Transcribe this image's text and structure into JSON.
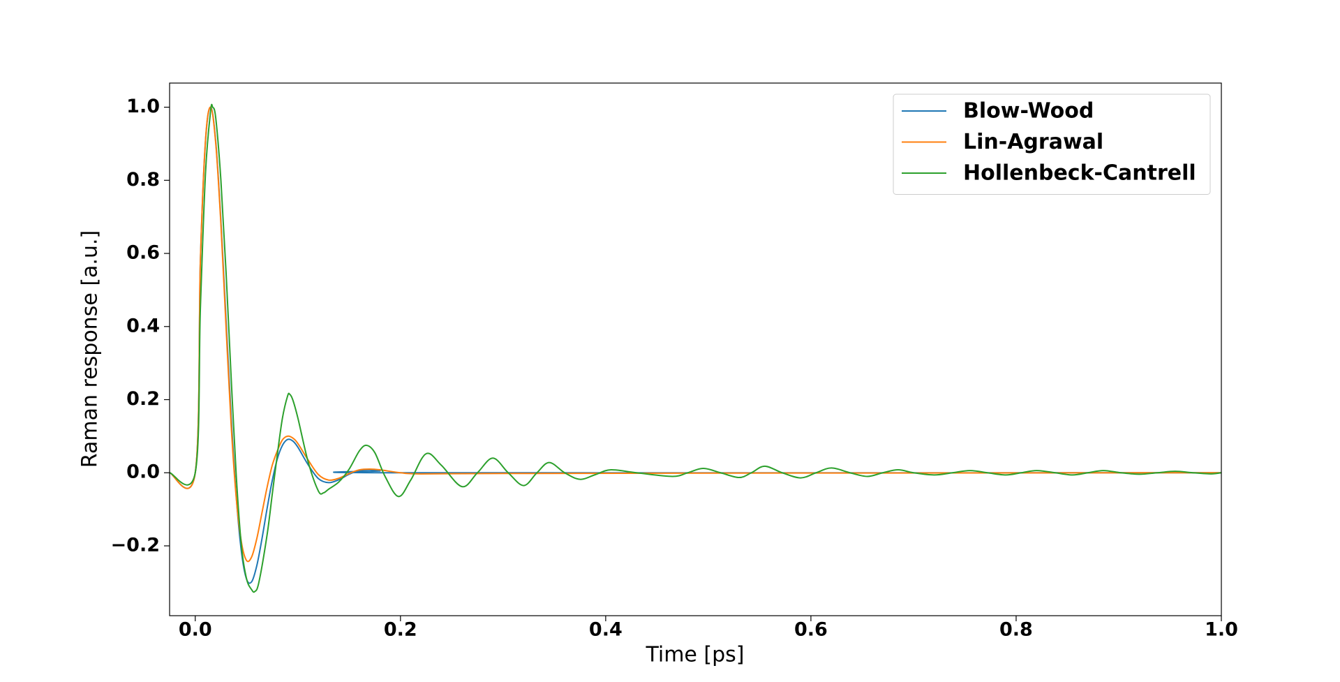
{
  "chart_data": {
    "type": "line",
    "xlabel": "Time [ps]",
    "ylabel": "Raman response [a.u.]",
    "xlim": [
      -0.025,
      1.0
    ],
    "ylim": [
      -0.391,
      1.066
    ],
    "xticks": [
      {
        "value": 0,
        "label": "0.0"
      },
      0.2,
      0.4,
      0.6,
      0.8,
      {
        "value": 1,
        "label": "1.0"
      }
    ],
    "yticks": [
      {
        "value": -0.2,
        "label": "−0.2"
      },
      {
        "value": 0,
        "label": "0.0"
      },
      0.2,
      0.4,
      0.6,
      0.8,
      {
        "value": 1,
        "label": "1.0"
      }
    ],
    "grid": false,
    "legend": "upper right",
    "series": [
      {
        "name": "Blow-Wood",
        "color": "#1f77b4",
        "x": [
          -0.025,
          0,
          0.005,
          0.01,
          0.015,
          0.02,
          0.025,
          0.03,
          0.035,
          0.04,
          0.045,
          0.05,
          0.055,
          0.06,
          0.065,
          0.07,
          0.075,
          0.08,
          0.085,
          0.09,
          0.095,
          0.1,
          0.11,
          0.12,
          0.13,
          0.14,
          0.15,
          0.16,
          0.17,
          0.18,
          0.2,
          1.0
        ],
        "values": [
          0,
          0,
          0.578,
          0.907,
          1.0,
          0.905,
          0.689,
          0.419,
          0.153,
          -0.067,
          -0.216,
          -0.291,
          -0.298,
          -0.254,
          -0.181,
          -0.098,
          -0.022,
          0.038,
          0.075,
          0.091,
          0.087,
          0.07,
          0.022,
          -0.016,
          -0.027,
          -0.019,
          -0.004,
          0.006,
          0.008,
          0.005,
          0,
          0
        ]
      },
      {
        "name": "Lin-Agrawal",
        "color": "#ff7f0e",
        "x": [
          -0.025,
          0,
          0.005,
          0.01,
          0.015,
          0.02,
          0.025,
          0.03,
          0.035,
          0.04,
          0.045,
          0.05,
          0.055,
          0.06,
          0.065,
          0.07,
          0.075,
          0.08,
          0.085,
          0.09,
          0.095,
          0.1,
          0.11,
          0.12,
          0.13,
          0.14,
          0.15,
          0.16,
          0.17,
          0.18,
          0.2,
          0.22,
          0.3,
          0.5,
          1.0
        ],
        "values": [
          0,
          0,
          0.58,
          0.91,
          1.0,
          0.9,
          0.68,
          0.4,
          0.13,
          -0.07,
          -0.19,
          -0.24,
          -0.23,
          -0.18,
          -0.11,
          -0.04,
          0.02,
          0.06,
          0.09,
          0.1,
          0.095,
          0.08,
          0.035,
          -0.005,
          -0.02,
          -0.015,
          -0.002,
          0.008,
          0.01,
          0.008,
          0,
          -0.003,
          -0.002,
          -0.001,
          0
        ]
      },
      {
        "name": "Hollenbeck-Cantrell",
        "color": "#2ca02c",
        "x": [
          -0.025,
          0,
          0.005,
          0.01,
          0.015,
          0.017,
          0.02,
          0.025,
          0.03,
          0.035,
          0.04,
          0.045,
          0.05,
          0.055,
          0.058,
          0.062,
          0.07,
          0.075,
          0.08,
          0.085,
          0.09,
          0.092,
          0.095,
          0.1,
          0.11,
          0.12,
          0.125,
          0.13,
          0.14,
          0.15,
          0.16,
          0.167,
          0.175,
          0.185,
          0.198,
          0.21,
          0.225,
          0.24,
          0.26,
          0.275,
          0.29,
          0.305,
          0.32,
          0.333,
          0.345,
          0.36,
          0.375,
          0.39,
          0.405,
          0.43,
          0.465,
          0.48,
          0.495,
          0.512,
          0.53,
          0.542,
          0.555,
          0.572,
          0.59,
          0.605,
          0.62,
          0.638,
          0.655,
          0.67,
          0.685,
          0.7,
          0.72,
          0.738,
          0.755,
          0.772,
          0.79,
          0.805,
          0.82,
          0.838,
          0.855,
          0.87,
          0.885,
          0.902,
          0.92,
          0.938,
          0.955,
          0.972,
          0.99,
          1.0
        ],
        "values": [
          0,
          0,
          0.45,
          0.82,
          0.99,
          1.0,
          0.97,
          0.8,
          0.55,
          0.26,
          -0.01,
          -0.2,
          -0.29,
          -0.32,
          -0.325,
          -0.3,
          -0.17,
          -0.06,
          0.05,
          0.15,
          0.21,
          0.215,
          0.2,
          0.15,
          0.03,
          -0.05,
          -0.055,
          -0.045,
          -0.025,
          0.01,
          0.06,
          0.075,
          0.055,
          -0.01,
          -0.065,
          -0.02,
          0.052,
          0.02,
          -0.038,
          0,
          0.04,
          0,
          -0.035,
          0,
          0.028,
          0,
          -0.018,
          -0.005,
          0.008,
          0,
          -0.01,
          0,
          0.012,
          0,
          -0.013,
          0,
          0.018,
          0,
          -0.014,
          0,
          0.013,
          0,
          -0.01,
          0,
          0.008,
          0,
          -0.006,
          0,
          0.006,
          0,
          -0.006,
          0,
          0.006,
          0,
          -0.006,
          0,
          0.006,
          0,
          -0.004,
          0,
          0.004,
          0,
          -0.003,
          0
        ]
      }
    ]
  }
}
